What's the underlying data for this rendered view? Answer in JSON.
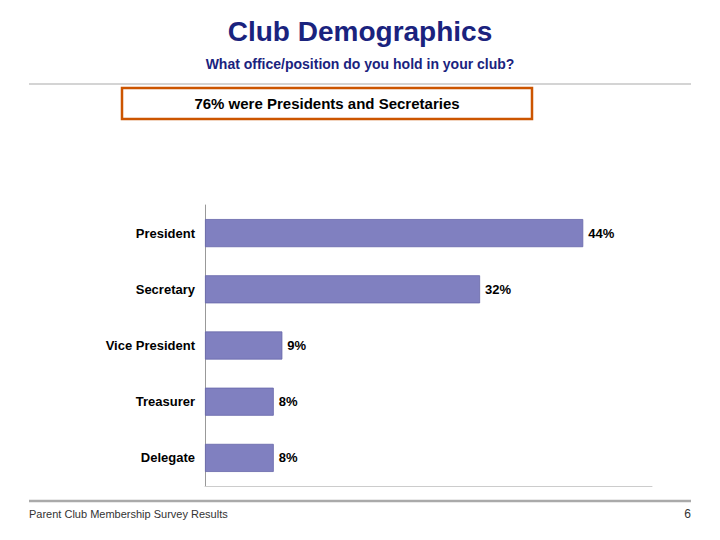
{
  "chart_data": {
    "type": "bar",
    "orientation": "horizontal",
    "title": "Club Demographics",
    "subtitle": "What office/position do you hold in your club?",
    "annotations": [
      "76% were Presidents and Secretaries",
      "Parent Club Membership Survey Results",
      "6"
    ],
    "categories": [
      "Delegate",
      "Treasurer",
      "Vice President",
      "Secretary",
      "President"
    ],
    "values": [
      8,
      8,
      9,
      32,
      44
    ],
    "value_labels": [
      "8%",
      "8%",
      "9%",
      "32%",
      "44%"
    ],
    "data_labels": true,
    "color": "#8080C0",
    "xlim": [
      0,
      52
    ],
    "grid": false,
    "tick_labels": "y"
  }
}
